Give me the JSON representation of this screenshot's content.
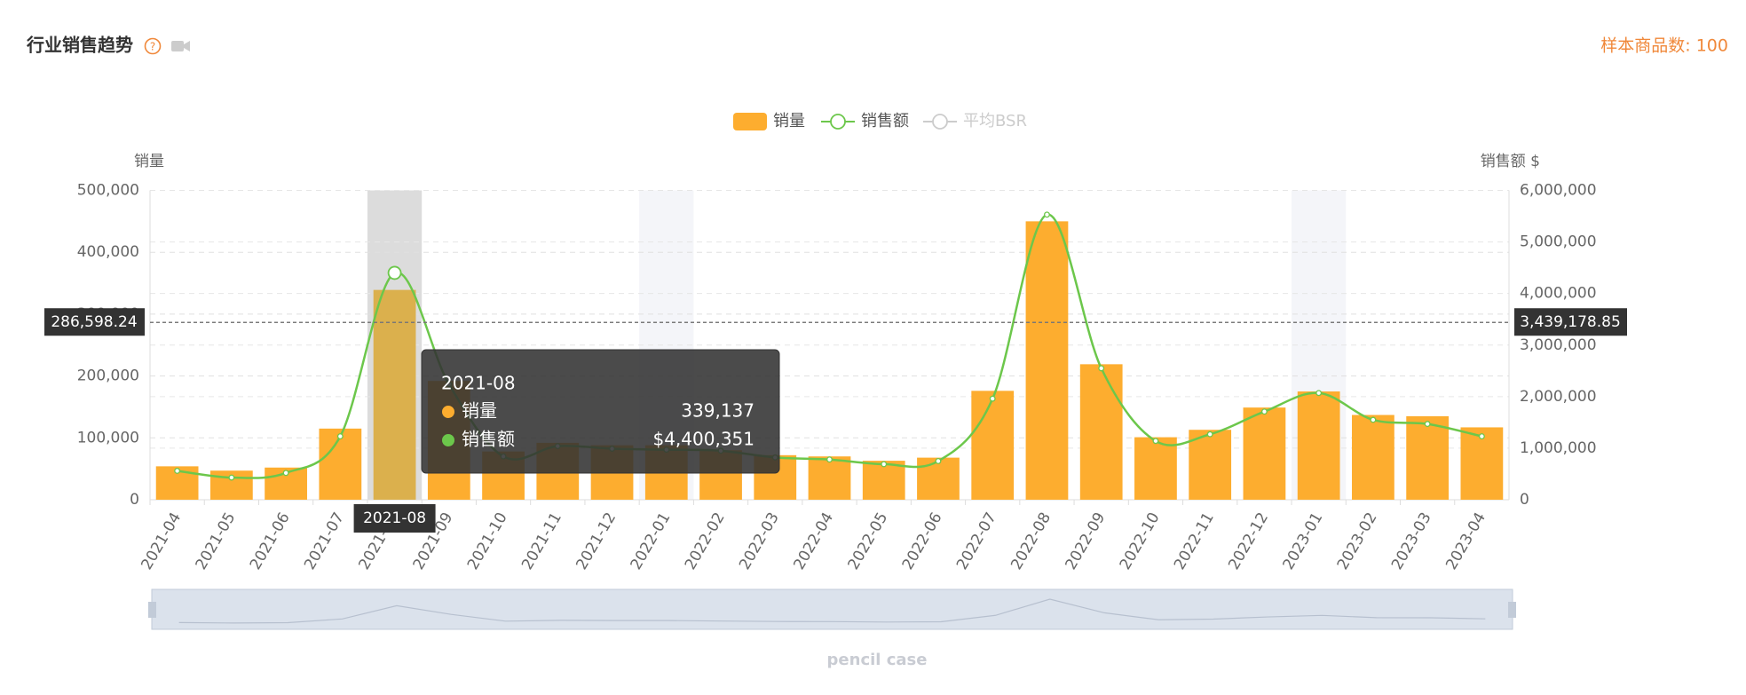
{
  "header": {
    "title": "行业销售趋势",
    "sample": "样本商品数: 100"
  },
  "chart_data": {
    "type": "bar-line",
    "categories": [
      "2021-04",
      "2021-05",
      "2021-06",
      "2021-07",
      "2021-08",
      "2021-09",
      "2021-10",
      "2021-11",
      "2021-12",
      "2022-01",
      "2022-02",
      "2022-03",
      "2022-04",
      "2022-05",
      "2022-06",
      "2022-07",
      "2022-08",
      "2022-09",
      "2022-10",
      "2022-11",
      "2022-12",
      "2023-01",
      "2023-02",
      "2023-03",
      "2023-04"
    ],
    "series": [
      {
        "name": "销量",
        "type": "bar",
        "color": "#fdad2f",
        "values": [
          54000,
          47000,
          52000,
          115000,
          339137,
          192000,
          78000,
          92000,
          88000,
          88000,
          80000,
          72000,
          70000,
          63000,
          68000,
          176000,
          450000,
          219000,
          101000,
          113000,
          149000,
          175000,
          137000,
          135000,
          117000
        ]
      },
      {
        "name": "销售额",
        "type": "line",
        "axis": "y2",
        "color": "#6cc74b",
        "values": [
          560000,
          430000,
          520000,
          1230000,
          4400351,
          2240000,
          840000,
          1040000,
          990000,
          970000,
          950000,
          820000,
          780000,
          690000,
          750000,
          1960000,
          5530000,
          2550000,
          1140000,
          1270000,
          1710000,
          2070000,
          1550000,
          1470000,
          1230000
        ]
      },
      {
        "name": "平均BSR",
        "type": "line",
        "hidden": true,
        "color": "#cccccc",
        "values": [
          null,
          null,
          null,
          null,
          null,
          null,
          null,
          null,
          null,
          null,
          null,
          null,
          null,
          null,
          null,
          null,
          null,
          null,
          null,
          null,
          null,
          null,
          null,
          null,
          null
        ]
      }
    ],
    "ylabel": "销量",
    "y2label": "销售额 $",
    "ylim": [
      0,
      500000
    ],
    "yticks": [
      0,
      {
        "value": 100000,
        "label": "100,000"
      },
      {
        "value": 200000,
        "label": "200,000"
      },
      {
        "value": 300000,
        "label": "300,000"
      },
      {
        "value": 400000,
        "label": "400,000"
      },
      {
        "value": 500000,
        "label": "500,000"
      }
    ],
    "y2lim": [
      0,
      6000000
    ],
    "y2ticks": [
      0,
      {
        "value": 1000000,
        "label": "1,000,000"
      },
      {
        "value": 2000000,
        "label": "2,000,000"
      },
      {
        "value": 3000000,
        "label": "3,000,000"
      },
      {
        "value": 4000000,
        "label": "4,000,000"
      },
      {
        "value": 5000000,
        "label": "5,000,000"
      },
      {
        "value": 6000000,
        "label": "6,000,000"
      }
    ],
    "average": {
      "value": 286598.24,
      "label": "286,598.24"
    },
    "average2": {
      "value": 3439178.85,
      "label": "3,439,178.85"
    },
    "mark_areas": [
      "2022-01",
      "2023-01"
    ],
    "grid": true,
    "tooltip": {
      "title": "2021-08",
      "items": [
        {
          "name": "销量",
          "label": "339,137"
        },
        {
          "name": "销售额",
          "label": "$4,400,351"
        }
      ]
    },
    "slider_label": "pencil case"
  }
}
